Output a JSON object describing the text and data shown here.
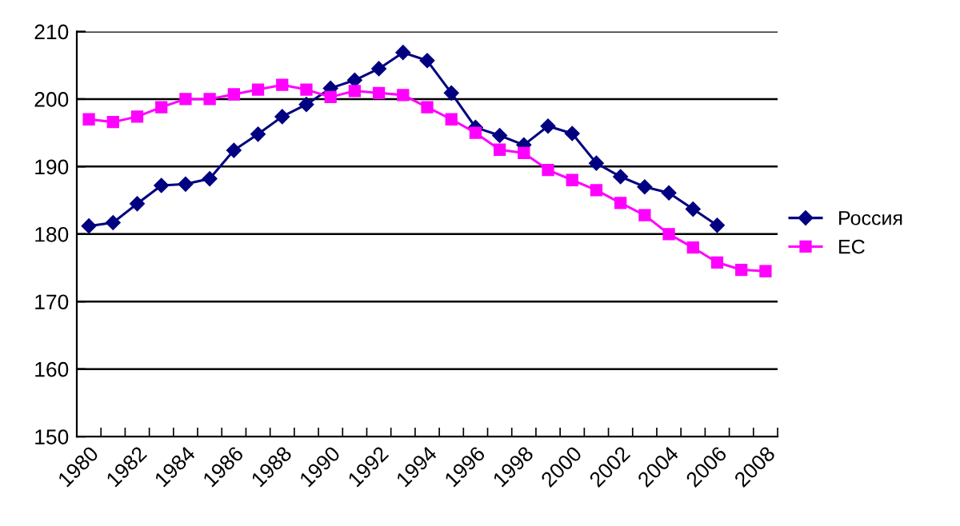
{
  "chart_data": {
    "type": "line",
    "categories": [
      "1980",
      null,
      "1982",
      null,
      "1984",
      null,
      "1986",
      null,
      "1988",
      null,
      "1990",
      null,
      "1992",
      null,
      "1994",
      null,
      "1996",
      null,
      "1998",
      null,
      "2000",
      null,
      "2002",
      null,
      "2004",
      null,
      "2006",
      null,
      "2008"
    ],
    "series": [
      {
        "name": "Россия",
        "color": "#000080",
        "marker": "diamond",
        "values": [
          181.2,
          181.7,
          184.5,
          187.2,
          187.4,
          188.2,
          192.4,
          194.8,
          197.4,
          199.2,
          201.6,
          202.8,
          204.5,
          206.9,
          205.7,
          200.9,
          195.8,
          194.6,
          193.2,
          196.0,
          194.9,
          190.5,
          188.5,
          187.0,
          186.1,
          183.7,
          181.3,
          null,
          null
        ]
      },
      {
        "name": "ЕС",
        "color": "#ff00ff",
        "marker": "square",
        "values": [
          197.0,
          196.6,
          197.4,
          198.8,
          200.0,
          200.0,
          200.7,
          201.4,
          202.1,
          201.4,
          200.3,
          201.2,
          200.9,
          200.6,
          198.8,
          197.0,
          195.0,
          192.5,
          192.0,
          189.5,
          188.0,
          186.5,
          184.6,
          182.8,
          180.0,
          178.0,
          175.8,
          174.7,
          174.5
        ]
      }
    ],
    "ylim": [
      150,
      210
    ],
    "yticks": [
      150,
      160,
      170,
      180,
      190,
      200,
      210
    ],
    "grid": "y",
    "legend": "right"
  }
}
